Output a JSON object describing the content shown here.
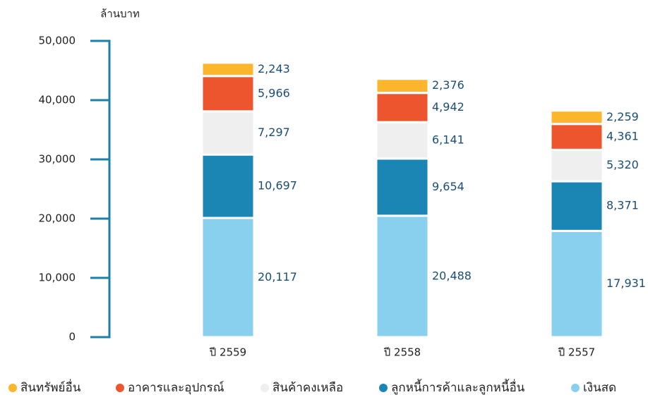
{
  "chart_data": {
    "type": "stacked_bar",
    "y_axis_label": "ล้านบาท",
    "categories": [
      "ปี 2559",
      "ปี 2558",
      "ปี 2557"
    ],
    "series": [
      {
        "name": "สินทรัพย์อื่น",
        "color": "#fbb62b",
        "values": [
          2243,
          2376,
          2259
        ],
        "value_labels": [
          "2,243",
          "2,376",
          "2,259"
        ]
      },
      {
        "name": "อาคารและอุปกรณ์",
        "color": "#ec552e",
        "values": [
          5966,
          4942,
          4361
        ],
        "value_labels": [
          "5,966",
          "4,942",
          "4,361"
        ]
      },
      {
        "name": "สินค้าคงเหลือ",
        "color": "#efefef",
        "values": [
          7297,
          6141,
          5320
        ],
        "value_labels": [
          "7,297",
          "6,141",
          "5,320"
        ]
      },
      {
        "name": "ลูกหนี้การค้าและลูกหนี้อื่น",
        "color": "#1b86b4",
        "values": [
          10697,
          9654,
          8371
        ],
        "value_labels": [
          "10,697",
          "9,654",
          "8,371"
        ]
      },
      {
        "name": "เงินสด",
        "color": "#88d0ee",
        "values": [
          20117,
          20488,
          17931
        ],
        "value_labels": [
          "20,117",
          "20,488",
          "17,931"
        ]
      }
    ],
    "ylim": [
      0,
      50000
    ],
    "yticks": [
      0,
      {
        "value": 10000,
        "label": "10,000"
      },
      {
        "value": 20000,
        "label": "20,000"
      },
      {
        "value": 30000,
        "label": "30,000"
      },
      {
        "value": 40000,
        "label": "40,000"
      },
      {
        "value": 50000,
        "label": "50,000"
      }
    ],
    "axis_color": "#1b7fa8",
    "legend": "bottom"
  }
}
